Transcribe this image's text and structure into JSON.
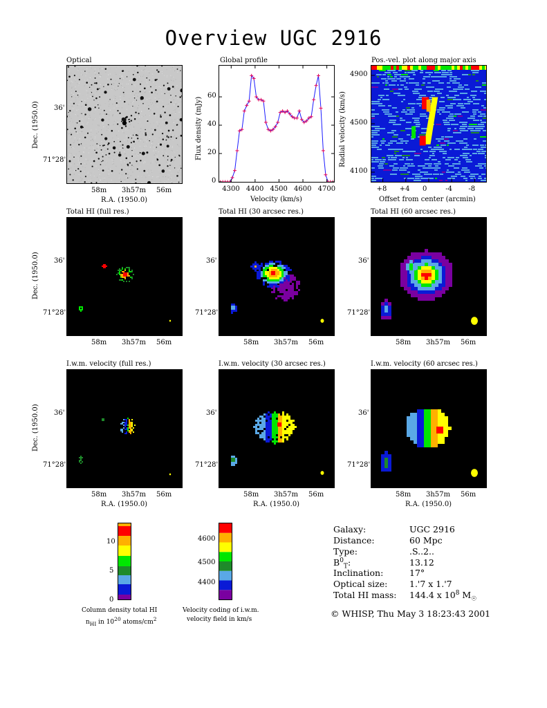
{
  "title": "Overview UGC 2916",
  "panels": {
    "optical": "Optical",
    "global_profile": "Global profile",
    "pv": "Pos.-vel. plot along major axis",
    "hi_full": "Total HI (full res.)",
    "hi_30": "Total HI (30 arcsec res.)",
    "hi_60": "Total HI (60 arcsec res.)",
    "vel_full": "I.w.m. velocity (full res.)",
    "vel_30": "I.w.m. velocity (30 arcsec res.)",
    "vel_60": "I.w.m. velocity (60 arcsec res.)"
  },
  "axes": {
    "dec_label": "Dec. (1950.0)",
    "ra_label": "R.A. (1950.0)",
    "dec_ticks": [
      "36'",
      "71°28'"
    ],
    "ra_ticks": [
      "58m",
      "3h57m",
      "56m"
    ],
    "flux_label": "Flux density (mJy)",
    "velocity_label": "Velocity (km/s)",
    "radial_velocity_label": "Radial velocity (km/s)",
    "offset_label": "Offset from center (arcmin)"
  },
  "colors": {
    "profile_line": "#1a1aff",
    "profile_marker": "#e0005a",
    "scale": [
      "#7a00a0",
      "#0a1ad6",
      "#5aa8e6",
      "#1e8a2a",
      "#00e600",
      "#ffff00",
      "#ffb000",
      "#ff0000"
    ]
  },
  "colorbars": {
    "column_density": {
      "ticks": [
        "0",
        "5",
        "10"
      ],
      "caption_line1": "Column density total HI",
      "caption_line2": "nHI in 10^20 atoms/cm^2"
    },
    "velocity": {
      "ticks": [
        "4400",
        "4500",
        "4600"
      ],
      "caption_line1": "Velocity coding of i.w.m.",
      "caption_line2": "velocity field in km/s"
    }
  },
  "info": {
    "galaxy_label": "Galaxy:",
    "galaxy_value": "UGC 2916",
    "distance_label": "Distance:",
    "distance_value": "60 Mpc",
    "type_label": "Type:",
    "type_value": ".S..2..",
    "bt_label": "B0T:",
    "bt_value": "13.12",
    "inclination_label": "Inclination:",
    "inclination_value": "17°",
    "optical_size_label": "Optical size:",
    "optical_size_value": "1.'7 x 1.'7",
    "hi_mass_label": "Total HI mass:",
    "hi_mass_value": "144.4 x 10^8 M☉"
  },
  "footer": "© WHISP, Thu May  3 18:23:43 2001",
  "chart_data": [
    {
      "type": "line",
      "title": "Global profile",
      "xlabel": "Velocity (km/s)",
      "ylabel": "Flux density (mJy)",
      "xlim": [
        4250,
        4730
      ],
      "ylim": [
        0,
        82
      ],
      "x_ticks": [
        4300,
        4400,
        4500,
        4600,
        4700
      ],
      "y_ticks": [
        0,
        20,
        40,
        60
      ],
      "x": [
        4255,
        4265,
        4275,
        4285,
        4295,
        4305,
        4315,
        4325,
        4335,
        4345,
        4355,
        4365,
        4375,
        4385,
        4395,
        4405,
        4415,
        4425,
        4435,
        4445,
        4455,
        4465,
        4475,
        4485,
        4495,
        4505,
        4515,
        4525,
        4535,
        4545,
        4555,
        4565,
        4575,
        4585,
        4595,
        4605,
        4615,
        4625,
        4635,
        4645,
        4655,
        4665,
        4675,
        4685,
        4695,
        4705,
        4715,
        4725
      ],
      "y": [
        0,
        0,
        0,
        0,
        0,
        3,
        8,
        22,
        36,
        37,
        50,
        54,
        57,
        75,
        73,
        60,
        58,
        58,
        57,
        42,
        37,
        36,
        37,
        39,
        42,
        49,
        50,
        49,
        50,
        48,
        46,
        45,
        45,
        50,
        44,
        42,
        43,
        45,
        46,
        58,
        68,
        75,
        52,
        22,
        5,
        0,
        0,
        0
      ]
    },
    {
      "type": "heatmap",
      "title": "Pos.-vel. plot along major axis",
      "xlabel": "Offset from center (arcmin)",
      "ylabel": "Radial velocity (km/s)",
      "x_ticks": [
        "+8",
        "+4",
        "0",
        "-4",
        "-8"
      ],
      "y_ticks": [
        4100,
        4500,
        4900
      ]
    }
  ]
}
